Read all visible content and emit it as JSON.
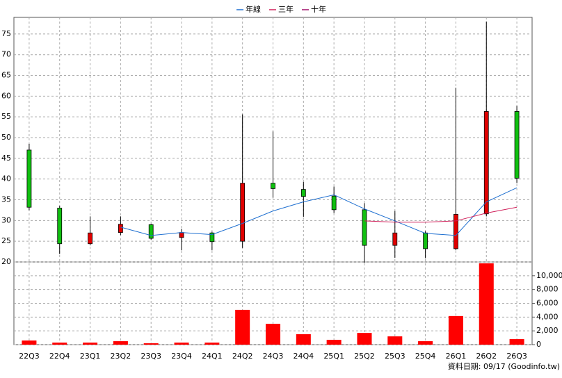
{
  "chart_data": {
    "type": "candlestick",
    "categories": [
      "22Q3",
      "22Q4",
      "23Q1",
      "23Q2",
      "23Q3",
      "23Q4",
      "24Q1",
      "24Q2",
      "24Q3",
      "24Q4",
      "25Q1",
      "25Q2",
      "25Q3",
      "25Q4",
      "26Q1",
      "26Q2",
      "26Q3"
    ],
    "open": [
      47,
      33,
      24.4,
      27.1,
      29,
      25.9,
      27,
      25,
      39,
      37.5,
      35.9,
      32.6,
      24,
      27,
      23.2,
      31.6,
      56.3
    ],
    "high": [
      48.5,
      33.5,
      31,
      31,
      29.2,
      28,
      27.3,
      55.6,
      51.5,
      39.3,
      38.2,
      34.2,
      32.3,
      27.4,
      62,
      78,
      57.6
    ],
    "low": [
      32.5,
      21.9,
      24,
      26.5,
      25.4,
      22.8,
      22.8,
      23.4,
      35.5,
      30.9,
      31.8,
      19.8,
      21,
      20.9,
      22.8,
      31,
      39
    ],
    "close": [
      33.2,
      24.4,
      27,
      29.1,
      25.7,
      27.1,
      24.9,
      39,
      37.7,
      35.8,
      32.6,
      24,
      27,
      23.2,
      31.5,
      56.3,
      40.2
    ],
    "up_color": "#e00000",
    "down_color": "#10c010",
    "series": [
      {
        "name": "年線",
        "color": "#1e6fd0",
        "values": [
          null,
          null,
          null,
          28.4,
          26.4,
          27.1,
          26.6,
          29.3,
          32.3,
          34.5,
          36.2,
          32.8,
          29.9,
          26.9,
          26.4,
          34.5,
          37.9
        ]
      },
      {
        "name": "三年",
        "color": "#d0205a",
        "values": [
          null,
          null,
          null,
          null,
          null,
          null,
          null,
          null,
          null,
          null,
          null,
          29.9,
          29.6,
          29.6,
          29.9,
          31.8,
          33.2
        ]
      },
      {
        "name": "十年",
        "color": "#a0106a",
        "values": [
          null,
          null,
          null,
          null,
          null,
          null,
          null,
          null,
          null,
          null,
          null,
          null,
          null,
          null,
          null,
          null,
          null
        ]
      }
    ],
    "ylim": [
      20,
      79
    ],
    "yticks": [
      20,
      25,
      30,
      35,
      40,
      45,
      50,
      55,
      60,
      65,
      70,
      75
    ],
    "volume": {
      "color": "#ff0000",
      "values": [
        600,
        300,
        300,
        500,
        200,
        300,
        300,
        5050,
        3030,
        1520,
        700,
        1700,
        1200,
        500,
        4150,
        11800,
        800
      ],
      "ylim": [
        0,
        12000
      ],
      "yticks": [
        0,
        {
          "value": 2000,
          "label": "2,000"
        },
        {
          "value": 4000,
          "label": "4,000"
        },
        {
          "value": 6000,
          "label": "6,000"
        },
        {
          "value": 8000,
          "label": "8,000"
        },
        {
          "value": 10000,
          "label": "10,000"
        }
      ]
    },
    "grid": true,
    "footer": "資料日期: 09/17 (Goodinfo.tw)"
  }
}
